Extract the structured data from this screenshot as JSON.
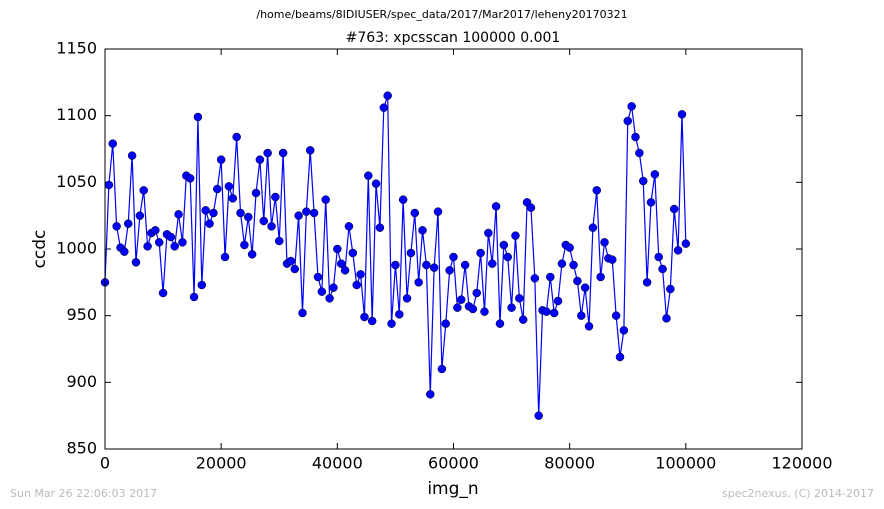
{
  "chart_data": {
    "type": "line",
    "suptitle": "/home/beams/8IDIUSER/spec_data/2017/Mar2017/leheny20170321",
    "title": "#763: xpcsscan 100000 0.001",
    "xlabel": "img_n",
    "ylabel": "ccdc",
    "footer_left": "Sun Mar 26 22:06:03 2017",
    "footer_right": "spec2nexus, (C) 2014-2017",
    "xlim": [
      0,
      120000
    ],
    "xticks": [
      0,
      20000,
      40000,
      60000,
      80000,
      100000,
      120000
    ],
    "ylim": [
      850,
      1150
    ],
    "yticks": [
      850,
      900,
      950,
      1000,
      1050,
      1100,
      1150
    ],
    "grid": false,
    "x": [
      0,
      667,
      1333,
      2000,
      2667,
      3333,
      4000,
      4667,
      5333,
      6000,
      6667,
      7333,
      8000,
      8667,
      9333,
      10000,
      10667,
      11333,
      12000,
      12667,
      13333,
      14000,
      14667,
      15333,
      16000,
      16667,
      17333,
      18000,
      18667,
      19333,
      20000,
      20667,
      21333,
      22000,
      22667,
      23333,
      24000,
      24667,
      25333,
      26000,
      26667,
      27333,
      28000,
      28667,
      29333,
      30000,
      30667,
      31333,
      32000,
      32667,
      33333,
      34000,
      34667,
      35333,
      36000,
      36667,
      37333,
      38000,
      38667,
      39333,
      40000,
      40667,
      41333,
      42000,
      42667,
      43333,
      44000,
      44667,
      45333,
      46000,
      46667,
      47333,
      48000,
      48667,
      49333,
      50000,
      50667,
      51333,
      52000,
      52667,
      53333,
      54000,
      54667,
      55333,
      56000,
      56667,
      57333,
      58000,
      58667,
      59333,
      60000,
      60667,
      61333,
      62000,
      62667,
      63333,
      64000,
      64667,
      65333,
      66000,
      66667,
      67333,
      68000,
      68667,
      69333,
      70000,
      70667,
      71333,
      72000,
      72667,
      73333,
      74000,
      74667,
      75333,
      76000,
      76667,
      77333,
      78000,
      78667,
      79333,
      80000,
      80667,
      81333,
      82000,
      82667,
      83333,
      84000,
      84667,
      85333,
      86000,
      86667,
      87333,
      88000,
      88667,
      89333,
      90000,
      90667,
      91333,
      92000,
      92667,
      93333,
      94000,
      94667,
      95333,
      96000,
      96667,
      97333,
      98000,
      98667,
      99333,
      100000
    ],
    "series": [
      {
        "name": "ccdc",
        "color": "#0000ff",
        "values": [
          975,
          1048,
          1079,
          1017,
          1001,
          998,
          1019,
          1070,
          990,
          1025,
          1044,
          1002,
          1012,
          1014,
          1005,
          967,
          1011,
          1009,
          1002,
          1026,
          1005,
          1055,
          1053,
          964,
          1099,
          973,
          1029,
          1019,
          1027,
          1045,
          1067,
          994,
          1047,
          1038,
          1084,
          1027,
          1003,
          1024,
          996,
          1042,
          1067,
          1021,
          1072,
          1017,
          1039,
          1006,
          1072,
          989,
          991,
          985,
          1025,
          952,
          1028,
          1074,
          1027,
          979,
          968,
          1037,
          963,
          971,
          1000,
          989,
          984,
          1017,
          997,
          973,
          981,
          949,
          1055,
          946,
          1049,
          1016,
          1106,
          1115,
          944,
          988,
          951,
          1037,
          963,
          997,
          1027,
          975,
          1014,
          988,
          891,
          986,
          1028,
          910,
          944,
          984,
          994,
          956,
          962,
          988,
          957,
          955,
          967,
          997,
          953,
          1012,
          989,
          1032,
          944,
          1003,
          994,
          956,
          1010,
          963,
          947,
          1035,
          1031,
          978,
          875,
          954,
          953,
          979,
          952,
          961,
          989,
          1003,
          1001,
          988,
          976,
          950,
          971,
          942,
          1016,
          1044,
          979,
          1005,
          993,
          992,
          950,
          919,
          939,
          1096,
          1107,
          1084,
          1072,
          1051,
          975,
          1035,
          1056,
          994,
          985,
          948,
          970,
          1030,
          999,
          1101,
          1004
        ]
      }
    ]
  }
}
